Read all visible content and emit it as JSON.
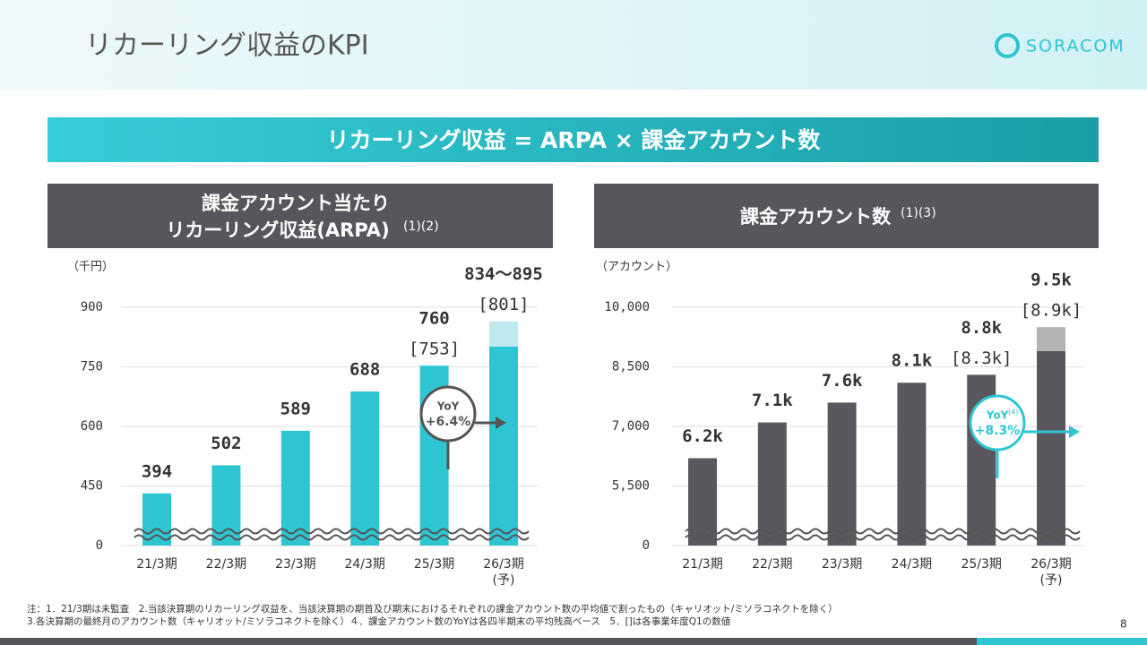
{
  "header": {
    "title": "リカーリング収益のKPI",
    "logo": "SORACOM"
  },
  "banner": "リカーリング収益 = ARPA × 課金アカウント数",
  "panels": [
    {
      "title_lines": [
        "課金アカウント当たり",
        "リカーリング収益(ARPA)"
      ],
      "sup": "(1)(2)"
    },
    {
      "title_lines": [
        "課金アカウント数"
      ],
      "sup": "(1)(3)"
    }
  ],
  "chart_data": [
    {
      "type": "bar",
      "y_label": "（千円）",
      "categories": [
        "21/3期",
        "22/3期",
        "23/3期",
        "24/3期",
        "25/3期",
        "26/3期"
      ],
      "forecast_mark": "(予)",
      "values": [
        394,
        502,
        589,
        688,
        760,
        null
      ],
      "value_labels": [
        "394",
        "502",
        "589",
        "688",
        "760",
        null
      ],
      "bracket_values": [
        null,
        null,
        null,
        null,
        753,
        801
      ],
      "bracket_labels": [
        null,
        null,
        null,
        null,
        "[753]",
        "[801]"
      ],
      "forecast_range": [
        834,
        895
      ],
      "forecast_range_label": "834～895",
      "color": "#2ec5d3",
      "light_color": "#bfe9ee",
      "ylim": [
        0,
        900
      ],
      "yticks": [
        0,
        450,
        600,
        750,
        900
      ],
      "broken_axis": true,
      "grid": true,
      "annotation": {
        "title": "YoY",
        "value": "+6.4%",
        "color": "#555"
      }
    },
    {
      "type": "bar",
      "y_label": "（アカウント）",
      "categories": [
        "21/3期",
        "22/3期",
        "23/3期",
        "24/3期",
        "25/3期",
        "26/3期"
      ],
      "forecast_mark": "(予)",
      "values": [
        6200,
        7100,
        7600,
        8100,
        8800,
        9500
      ],
      "value_labels": [
        "6.2k",
        "7.1k",
        "7.6k",
        "8.1k",
        "8.8k",
        "9.5k"
      ],
      "bracket_values": [
        null,
        null,
        null,
        null,
        8300,
        8900
      ],
      "bracket_labels": [
        null,
        null,
        null,
        null,
        "[8.3k]",
        "[8.9k]"
      ],
      "color": "#5a585e",
      "light_color": "#b3b3b3",
      "ylim": [
        0,
        10000
      ],
      "yticks": [
        0,
        {
          "value": 5500,
          "label": "5,500"
        },
        {
          "value": 7000,
          "label": "7,000"
        },
        {
          "value": 8500,
          "label": "8,500"
        },
        {
          "value": 10000,
          "label": "10,000"
        }
      ],
      "broken_axis": true,
      "grid": true,
      "annotation": {
        "title": "YoY",
        "title_sup": "(4)",
        "value": "+8.3%",
        "color": "#2ec5d3"
      }
    }
  ],
  "footnotes": [
    "注：1．21/3期は未監査　2.当該決算期のリカーリング収益を、当該決算期の期首及び期末におけるそれぞれの課金アカウント数の平均値で割ったもの（キャリオット/ミソラコネクトを除く）",
    "3.各決算期の最終月のアカウント数（キャリオット/ミソラコネクトを除く）４．課金アカウント数のYoYは各四半期末の平均残高ベース　5．[]は各事業年度Q1の数値"
  ],
  "page_number": "8"
}
